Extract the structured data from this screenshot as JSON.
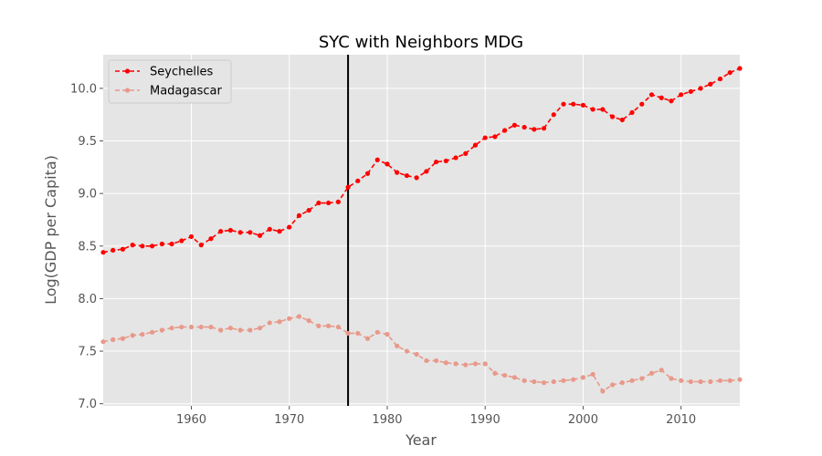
{
  "chart_data": {
    "type": "line",
    "title": "SYC with Neighbors MDG",
    "xlabel": "Year",
    "ylabel": "Log(GDP per Capita)",
    "xlim": [
      1951,
      2016
    ],
    "ylim": [
      6.98,
      10.32
    ],
    "xticks": [
      1960,
      1970,
      1980,
      1990,
      2000,
      2010
    ],
    "xtick_labels": [
      "1960",
      "1970",
      "1980",
      "1990",
      "2000",
      "2010"
    ],
    "yticks": [
      7.0,
      7.5,
      8.0,
      8.5,
      9.0,
      9.5,
      10.0
    ],
    "ytick_labels": [
      "7.0",
      "7.5",
      "8.0",
      "8.5",
      "9.0",
      "9.5",
      "10.0"
    ],
    "grid": true,
    "legend_position": "top-left",
    "vline": {
      "x": 1976,
      "color": "#000000"
    },
    "x": [
      1951,
      1952,
      1953,
      1954,
      1955,
      1956,
      1957,
      1958,
      1959,
      1960,
      1961,
      1962,
      1963,
      1964,
      1965,
      1966,
      1967,
      1968,
      1969,
      1970,
      1971,
      1972,
      1973,
      1974,
      1975,
      1976,
      1977,
      1978,
      1979,
      1980,
      1981,
      1982,
      1983,
      1984,
      1985,
      1986,
      1987,
      1988,
      1989,
      1990,
      1991,
      1992,
      1993,
      1994,
      1995,
      1996,
      1997,
      1998,
      1999,
      2000,
      2001,
      2002,
      2003,
      2004,
      2005,
      2006,
      2007,
      2008,
      2009,
      2010,
      2011,
      2012,
      2013,
      2014,
      2015,
      2016
    ],
    "series": [
      {
        "name": "Seychelles",
        "color": "#ff0000",
        "style": "dashed",
        "values": [
          8.44,
          8.46,
          8.47,
          8.51,
          8.5,
          8.5,
          8.52,
          8.52,
          8.55,
          8.59,
          8.51,
          8.57,
          8.64,
          8.65,
          8.63,
          8.63,
          8.6,
          8.66,
          8.64,
          8.68,
          8.79,
          8.84,
          8.91,
          8.91,
          8.92,
          9.06,
          9.12,
          9.19,
          9.32,
          9.28,
          9.2,
          9.17,
          9.15,
          9.21,
          9.3,
          9.31,
          9.34,
          9.38,
          9.46,
          9.53,
          9.54,
          9.6,
          9.65,
          9.63,
          9.61,
          9.62,
          9.75,
          9.85,
          9.85,
          9.84,
          9.8,
          9.8,
          9.73,
          9.7,
          9.77,
          9.85,
          9.94,
          9.91,
          9.88,
          9.94,
          9.97,
          10.0,
          10.04,
          10.09,
          10.15,
          10.19
        ]
      },
      {
        "name": "Madagascar",
        "color": "#e8998a",
        "style": "dashed",
        "values": [
          7.59,
          7.61,
          7.62,
          7.65,
          7.66,
          7.68,
          7.7,
          7.72,
          7.73,
          7.73,
          7.73,
          7.73,
          7.7,
          7.72,
          7.7,
          7.7,
          7.72,
          7.77,
          7.78,
          7.81,
          7.83,
          7.79,
          7.74,
          7.74,
          7.73,
          7.67,
          7.67,
          7.62,
          7.68,
          7.66,
          7.55,
          7.5,
          7.47,
          7.41,
          7.41,
          7.39,
          7.38,
          7.37,
          7.38,
          7.38,
          7.29,
          7.27,
          7.25,
          7.22,
          7.21,
          7.2,
          7.21,
          7.22,
          7.23,
          7.25,
          7.28,
          7.12,
          7.18,
          7.2,
          7.22,
          7.24,
          7.29,
          7.32,
          7.24,
          7.22,
          7.21,
          7.21,
          7.21,
          7.22,
          7.22,
          7.23
        ]
      }
    ]
  }
}
